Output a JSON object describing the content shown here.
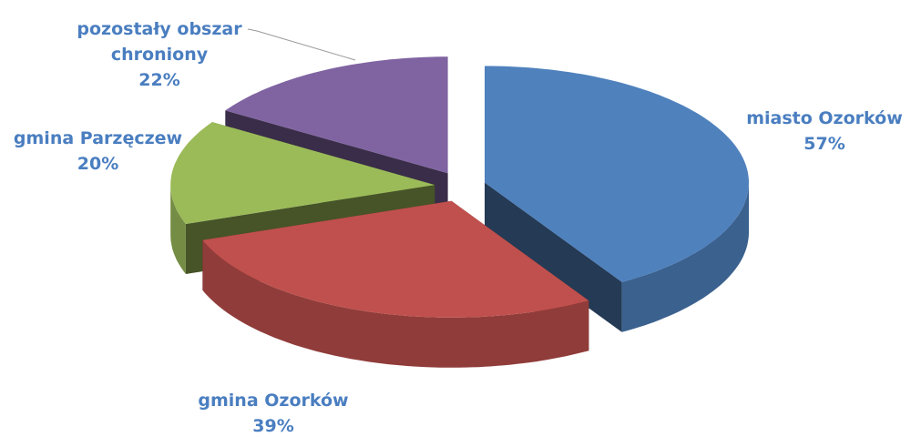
{
  "chart_data": {
    "type": "pie3d",
    "categories": [
      "miasto Ozorków",
      "gmina Ozorków",
      "gmina Parzęczew",
      "pozostały obszar chroniony"
    ],
    "values": [
      57,
      39,
      20,
      22
    ],
    "value_labels": [
      "57%",
      "39%",
      "20%",
      "22%"
    ],
    "colors": [
      "#4f81bd",
      "#c0504d",
      "#9bbb59",
      "#8064a2"
    ]
  }
}
